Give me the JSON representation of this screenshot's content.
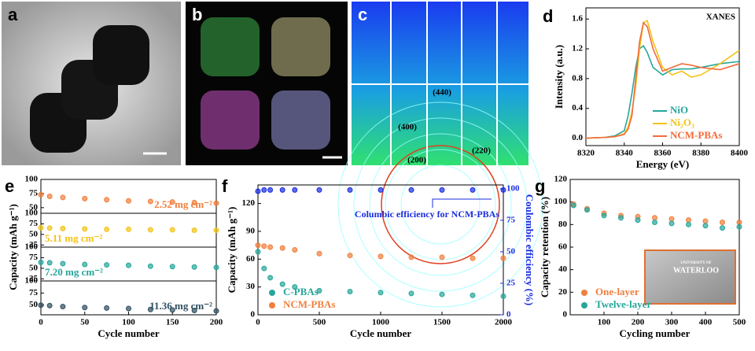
{
  "images": [
    {
      "label": "a"
    },
    {
      "label": "b"
    },
    {
      "label": "c",
      "annotations": [
        "(440)",
        "(400)",
        "(220)",
        "(200)"
      ]
    }
  ],
  "chart_data": [
    {
      "label": "d",
      "type": "line",
      "title": "XANES",
      "xlabel": "Energy (eV)",
      "ylabel": "Intensity (a.u.)",
      "x": [
        8320,
        8330,
        8335,
        8340,
        8342,
        8344,
        8346,
        8348,
        8350,
        8352,
        8355,
        8360,
        8365,
        8370,
        8375,
        8380,
        8390,
        8400
      ],
      "xlim": [
        8320,
        8400
      ],
      "xticks": [
        8320,
        8340,
        8360,
        8380,
        8400
      ],
      "ylim": [
        -0.1,
        1.75
      ],
      "yticks": [
        {
          "value": 0,
          "label": "0.0"
        },
        0.4,
        0.8,
        1.2,
        1.6
      ],
      "legend": "lower right",
      "series": [
        {
          "name": "NiO",
          "color": "#26a69a",
          "values": [
            0,
            0.01,
            0.03,
            0.1,
            0.3,
            0.6,
            0.95,
            1.2,
            1.24,
            1.15,
            0.95,
            0.85,
            0.92,
            0.93,
            0.93,
            0.95,
            1.0,
            1.03
          ]
        },
        {
          "name": "Ni₂O₃",
          "color": "#f2c318",
          "values": [
            0,
            0.01,
            0.02,
            0.06,
            0.15,
            0.35,
            0.7,
            1.2,
            1.55,
            1.58,
            1.3,
            0.95,
            0.85,
            0.9,
            0.82,
            0.85,
            1.0,
            1.18
          ]
        },
        {
          "name": "NCM-PBAs",
          "color": "#f26b3a",
          "values": [
            0,
            0.01,
            0.02,
            0.05,
            0.12,
            0.3,
            0.8,
            1.3,
            1.55,
            1.5,
            1.2,
            0.9,
            0.95,
            1.0,
            0.98,
            0.95,
            0.92,
            1.0
          ]
        }
      ]
    },
    {
      "label": "e",
      "type": "scatter",
      "xlabel": "Cycle number",
      "ylabel": "Capacity (mAh g⁻¹)",
      "x": [
        0,
        10,
        25,
        50,
        75,
        100,
        125,
        150,
        175,
        200
      ],
      "xlim": [
        0,
        200
      ],
      "xticks": [
        0,
        50,
        100,
        150,
        200
      ],
      "panels": [
        {
          "annotation": "2.52 mg cm⁻²",
          "color": "#f07f3c",
          "ylim": [
            40,
            100
          ],
          "yticks": [
            50,
            75,
            100
          ],
          "values": [
            73,
            70,
            68,
            66,
            64,
            62,
            61,
            60,
            59,
            58
          ]
        },
        {
          "annotation": "5.11 mg cm⁻²",
          "color": "#f2c318",
          "ylim": [
            20,
            100
          ],
          "yticks": [
            25,
            50,
            75,
            100
          ],
          "values": [
            66,
            65,
            64,
            63,
            62,
            62,
            61,
            61,
            60,
            60
          ]
        },
        {
          "annotation": "7.20 mg cm⁻²",
          "color": "#26a69a",
          "ylim": [
            20,
            100
          ],
          "yticks": [
            25,
            50,
            75,
            100
          ],
          "values": [
            64,
            63,
            61,
            59,
            58,
            57,
            55,
            54,
            53,
            52
          ]
        },
        {
          "annotation": "11.36 mg cm⁻²",
          "color": "#2f4f5f",
          "ylim": [
            30,
            100
          ],
          "yticks": [
            50,
            75,
            100
          ],
          "values": [
            50,
            49,
            47,
            45,
            44,
            43,
            41,
            40,
            39,
            38
          ]
        }
      ]
    },
    {
      "label": "f",
      "type": "scatter",
      "xlabel": "Cycle number",
      "ylabel": "Capacity (mAh g⁻¹)",
      "y2label": "Coulombic efficiency (%)",
      "annotation": "Columbic efficiency for NCM-PBAs",
      "x": [
        0,
        50,
        100,
        200,
        300,
        500,
        750,
        1000,
        1250,
        1500,
        1750,
        2000
      ],
      "xlim": [
        0,
        2000
      ],
      "xticks": [
        0,
        500,
        1000,
        1500,
        2000
      ],
      "ylim": [
        0,
        140
      ],
      "yticks": [
        0,
        30,
        60,
        90,
        120
      ],
      "y2lim": [
        0,
        103
      ],
      "y2ticks": [
        0,
        25,
        50,
        75,
        100
      ],
      "legend": "lower left",
      "series": [
        {
          "name": "C-PBAs",
          "color": "#26a69a",
          "values": [
            68,
            50,
            40,
            33,
            30,
            26,
            25,
            24,
            23,
            22,
            21,
            20
          ]
        },
        {
          "name": "NCM-PBAs",
          "color": "#f07f3c",
          "values": [
            75,
            74,
            73,
            72,
            70,
            66,
            64,
            63,
            62,
            62,
            61,
            61
          ]
        },
        {
          "name": "Columbic efficiency for NCM-PBAs",
          "color": "#1a2de0",
          "axis": "y2",
          "values": [
            98,
            99,
            99,
            99,
            99,
            99,
            99,
            99,
            99,
            99,
            99,
            99
          ]
        }
      ]
    },
    {
      "label": "g",
      "type": "scatter",
      "xlabel": "Cycling number",
      "ylabel": "Capacity retention (%)",
      "inset_text": [
        "UNIVERSITY OF",
        "WATERLOO"
      ],
      "x": [
        10,
        50,
        100,
        150,
        200,
        250,
        300,
        350,
        400,
        450,
        500
      ],
      "xlim": [
        0,
        500
      ],
      "xticks": [
        100,
        200,
        300,
        400,
        500
      ],
      "ylim": [
        0,
        120
      ],
      "yticks": [
        0,
        20,
        40,
        60,
        80,
        100,
        120
      ],
      "legend": "lower left",
      "series": [
        {
          "name": "One-layer",
          "color": "#f07f3c",
          "values": [
            98,
            94,
            90,
            88,
            87,
            86,
            85,
            84,
            83,
            82,
            82
          ]
        },
        {
          "name": "Twelve-layer",
          "color": "#26a69a",
          "values": [
            97,
            93,
            88,
            86,
            84,
            82,
            81,
            80,
            79,
            77,
            78
          ]
        }
      ]
    }
  ]
}
